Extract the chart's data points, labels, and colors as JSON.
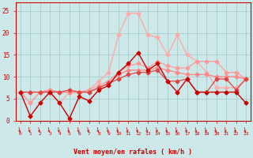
{
  "background_color": "#cce8e8",
  "grid_color": "#aacccc",
  "xlabel": "Vent moyen/en rafales ( km/h )",
  "xlabel_color": "#cc0000",
  "tick_color": "#cc0000",
  "axis_color": "#cc0000",
  "x_ticks": [
    0,
    1,
    2,
    3,
    4,
    5,
    6,
    7,
    8,
    9,
    10,
    11,
    12,
    13,
    14,
    15,
    16,
    17,
    18,
    19,
    20,
    21,
    22,
    23
  ],
  "ylim": [
    0,
    27
  ],
  "xlim": [
    -0.5,
    23.5
  ],
  "yticks": [
    0,
    5,
    10,
    15,
    20,
    25
  ],
  "series": [
    {
      "x": [
        0,
        1,
        2,
        3,
        4,
        5,
        6,
        7,
        8,
        9,
        10,
        11,
        12,
        13,
        14,
        15,
        16,
        17,
        18,
        19,
        20,
        21,
        22,
        23
      ],
      "y": [
        6.5,
        1.0,
        4.0,
        6.5,
        4.0,
        0.5,
        5.5,
        4.5,
        7.0,
        8.0,
        11.0,
        13.0,
        15.5,
        11.5,
        13.0,
        9.0,
        6.5,
        9.5,
        6.5,
        6.5,
        6.5,
        6.5,
        6.5,
        4.0
      ],
      "color": "#cc0000",
      "marker": "D",
      "markersize": 2.5,
      "linewidth": 1.0,
      "zorder": 5
    },
    {
      "x": [
        0,
        1,
        2,
        3,
        4,
        5,
        6,
        7,
        8,
        9,
        10,
        11,
        12,
        13,
        14,
        15,
        16,
        17,
        18,
        19,
        20,
        21,
        22,
        23
      ],
      "y": [
        6.5,
        6.5,
        6.5,
        7.0,
        6.5,
        6.5,
        6.5,
        6.5,
        7.5,
        8.5,
        10.5,
        11.5,
        11.5,
        11.5,
        12.0,
        11.5,
        11.0,
        10.5,
        10.5,
        10.5,
        10.0,
        10.0,
        10.0,
        9.5
      ],
      "color": "#ff8888",
      "marker": "D",
      "markersize": 2.5,
      "linewidth": 1.0,
      "zorder": 3
    },
    {
      "x": [
        0,
        1,
        2,
        3,
        4,
        5,
        6,
        7,
        8,
        9,
        10,
        11,
        12,
        13,
        14,
        15,
        16,
        17,
        18,
        19,
        20,
        21,
        22,
        23
      ],
      "y": [
        6.5,
        6.5,
        6.5,
        6.5,
        6.5,
        7.0,
        6.5,
        6.5,
        7.5,
        8.5,
        9.5,
        10.5,
        11.0,
        11.0,
        11.5,
        9.0,
        9.0,
        9.5,
        6.5,
        6.5,
        9.5,
        9.5,
        7.0,
        9.5
      ],
      "color": "#dd4444",
      "marker": "D",
      "markersize": 2.5,
      "linewidth": 0.9,
      "zorder": 4
    },
    {
      "x": [
        0,
        1,
        2,
        3,
        4,
        5,
        6,
        7,
        8,
        9,
        10,
        11,
        12,
        13,
        14,
        15,
        16,
        17,
        18,
        19,
        20,
        21,
        22,
        23
      ],
      "y": [
        6.5,
        4.0,
        6.5,
        6.5,
        4.0,
        6.5,
        6.5,
        7.0,
        9.0,
        11.0,
        19.5,
        24.5,
        24.5,
        19.5,
        19.0,
        15.0,
        19.5,
        15.0,
        13.5,
        11.0,
        7.5,
        7.5,
        7.5,
        9.5
      ],
      "color": "#ffaaaa",
      "marker": "D",
      "markersize": 2.5,
      "linewidth": 1.0,
      "zorder": 2
    },
    {
      "x": [
        0,
        1,
        2,
        3,
        4,
        5,
        6,
        7,
        8,
        9,
        10,
        11,
        12,
        13,
        14,
        15,
        16,
        17,
        18,
        19,
        20,
        21,
        22,
        23
      ],
      "y": [
        6.5,
        4.0,
        6.5,
        7.0,
        6.5,
        6.5,
        6.5,
        7.0,
        8.0,
        9.0,
        11.0,
        12.5,
        13.0,
        12.0,
        13.5,
        12.5,
        12.0,
        12.0,
        13.5,
        13.5,
        13.5,
        11.0,
        11.0,
        9.5
      ],
      "color": "#ff9999",
      "marker": "D",
      "markersize": 2.5,
      "linewidth": 0.9,
      "zorder": 2
    }
  ],
  "arrow_color": "#cc0000"
}
